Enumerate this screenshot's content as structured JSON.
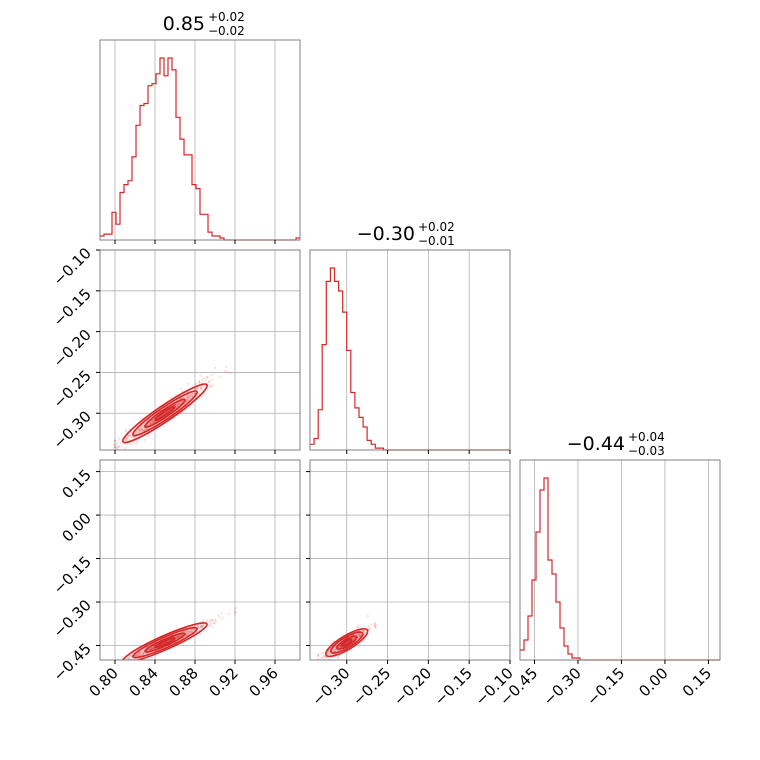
{
  "chart_data": {
    "type": "corner",
    "color": "#d62728",
    "params": [
      {
        "title": {
          "main": "0.85",
          "sup": "+0.02",
          "sub": "−0.02"
        },
        "range": [
          0.785,
          0.985
        ],
        "ticks": [
          0.8,
          0.84,
          0.88,
          0.92,
          0.96
        ],
        "tick_labels": [
          "0.80",
          "0.84",
          "0.88",
          "0.92",
          "0.96"
        ]
      },
      {
        "title": {
          "main": "−0.30",
          "sup": "+0.02",
          "sub": "−0.01"
        },
        "range": [
          -0.345,
          -0.1
        ],
        "ticks": [
          -0.3,
          -0.25,
          -0.2,
          -0.15,
          -0.1
        ],
        "tick_labels": [
          "−0.30",
          "−0.25",
          "−0.20",
          "−0.15",
          "−0.10"
        ]
      },
      {
        "title": {
          "main": "−0.44",
          "sup": "+0.04",
          "sub": "−0.03"
        },
        "range": [
          -0.5,
          0.19
        ],
        "ticks": [
          -0.45,
          -0.3,
          -0.15,
          0.0,
          0.15
        ],
        "tick_labels": [
          "−0.45",
          "−0.30",
          "−0.15",
          "0.00",
          "0.15"
        ]
      }
    ],
    "histograms": [
      {
        "param": 0,
        "bin_start": 0.785,
        "bin_width": 0.004,
        "counts": [
          2,
          3,
          3,
          14,
          8,
          24,
          28,
          30,
          42,
          58,
          68,
          69,
          78,
          79,
          84,
          92,
          83,
          92,
          86,
          62,
          51,
          43,
          43,
          28,
          26,
          13,
          13,
          4,
          2,
          2,
          1,
          0,
          0,
          0,
          0,
          0,
          0,
          0,
          0,
          0,
          0,
          0,
          0,
          0,
          0,
          0,
          0,
          0,
          0,
          1
        ]
      },
      {
        "param": 1,
        "bin_start": -0.345,
        "bin_width": 0.005,
        "counts": [
          3,
          6,
          21,
          55,
          88,
          95,
          88,
          83,
          72,
          52,
          30,
          22,
          17,
          12,
          5,
          3,
          1,
          1,
          0,
          0,
          0,
          0,
          0,
          0,
          0,
          0,
          0,
          0,
          0,
          0,
          0,
          0,
          0,
          0,
          0,
          0,
          0,
          0,
          0,
          0,
          0,
          0,
          0,
          0,
          0,
          0,
          0,
          0,
          0
        ]
      },
      {
        "param": 2,
        "bin_start": -0.5,
        "bin_width": 0.0138,
        "counts": [
          5,
          10,
          22,
          40,
          64,
          85,
          91,
          50,
          43,
          29,
          16,
          7,
          3,
          1,
          1,
          0,
          0,
          0,
          0,
          0,
          0,
          0,
          0,
          0,
          0,
          0,
          0,
          0,
          0,
          0,
          0,
          0,
          0,
          0,
          0,
          0,
          0,
          0,
          0,
          0,
          0,
          0,
          0,
          0,
          0,
          0,
          0,
          0,
          0,
          0
        ]
      }
    ],
    "scatter": [
      {
        "x_param": 0,
        "y_param": 1,
        "intercept": -0.3,
        "slope": 0.833,
        "x_center": 0.85,
        "x_sigma": 0.02,
        "resid_sigma": 0.005,
        "x_min": 0.8,
        "x_max": 0.915
      },
      {
        "x_param": 0,
        "y_param": 2,
        "intercept": -0.44,
        "slope": 1.53,
        "x_center": 0.85,
        "x_sigma": 0.02,
        "resid_sigma": 0.006,
        "x_min": 0.795,
        "x_max": 0.92
      },
      {
        "x_param": 1,
        "y_param": 2,
        "intercept": -0.44,
        "slope": 1.7,
        "x_center": -0.3,
        "x_sigma": 0.012,
        "resid_sigma": 0.01,
        "x_min": -0.335,
        "x_max": -0.24
      }
    ],
    "contour_levels": [
      0.5,
      1.0,
      1.6,
      2.1
    ],
    "grid": true,
    "legend": "none"
  }
}
